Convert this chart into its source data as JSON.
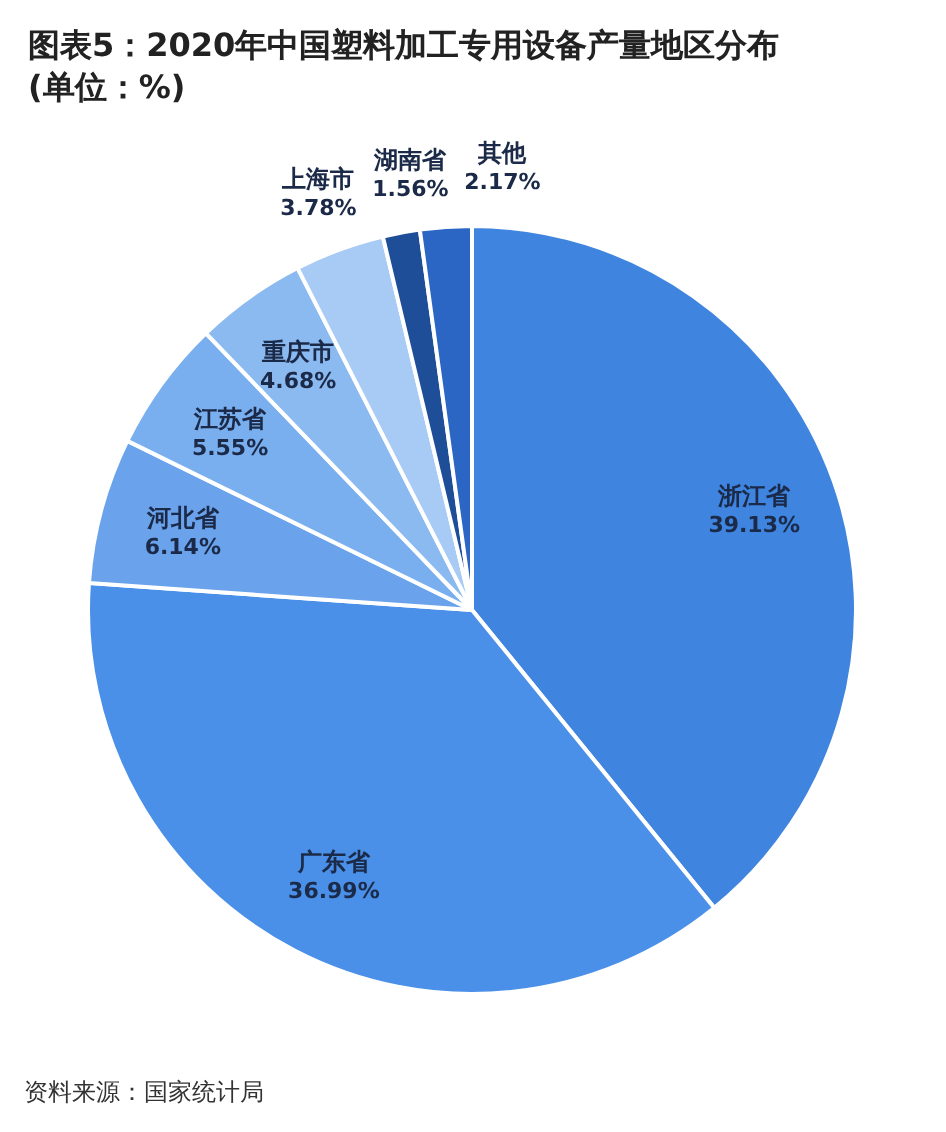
{
  "chart_data": {
    "type": "pie",
    "title": "图表5：2020年中国塑料加工专用设备产量地区分布(单位：%)",
    "categories": [
      "浙江省",
      "广东省",
      "河北省",
      "江苏省",
      "重庆市",
      "上海市",
      "湖南省",
      "其他"
    ],
    "values": [
      39.13,
      36.99,
      6.14,
      5.55,
      4.68,
      3.78,
      1.56,
      2.17
    ],
    "colors": [
      "#3f85e0",
      "#4b90e8",
      "#6aa3ec",
      "#7aafef",
      "#8bbaf1",
      "#a7cbf5",
      "#1f4e99",
      "#2c66c4"
    ],
    "value_labels": [
      "39.13%",
      "36.99%",
      "6.14%",
      "5.55%",
      "4.68%",
      "3.78%",
      "1.56%",
      "2.17%"
    ],
    "annotations": [
      "资料来源：国家统计局"
    ]
  }
}
